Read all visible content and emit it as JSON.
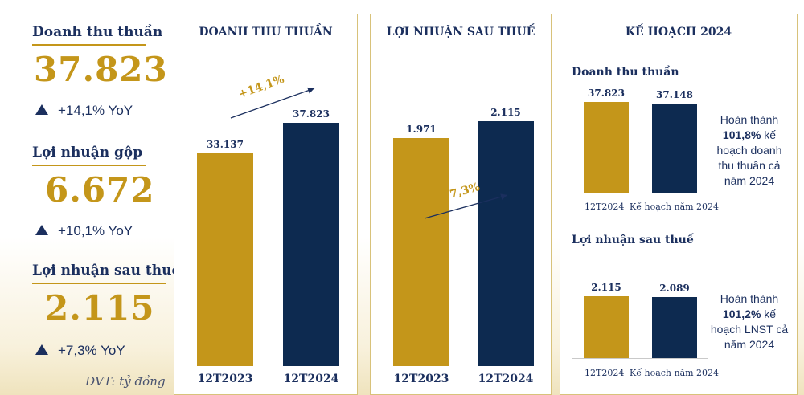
{
  "kpis": [
    {
      "label": "Doanh thu thuần",
      "value": "37.823",
      "yoy": "+14,1% YoY"
    },
    {
      "label": "Lợi nhuận gộp",
      "value": "6.672",
      "yoy": "+10,1% YoY"
    },
    {
      "label": "Lợi nhuận sau thuế",
      "value": "2.115",
      "yoy": "+7,3% YoY"
    }
  ],
  "unit": "ĐVT: tỷ đồng",
  "colors": {
    "gold": "#c4961a",
    "navy": "#0d2a50"
  },
  "chart_data": [
    {
      "type": "bar",
      "title": "DOANH THU THUẦN",
      "categories": [
        "12T2023",
        "12T2024"
      ],
      "values": [
        33137,
        37823
      ],
      "value_labels": [
        "33.137",
        "37.823"
      ],
      "growth_label": "+14,1%",
      "ylim": [
        0,
        45000
      ]
    },
    {
      "type": "bar",
      "title": "LỢI NHUẬN SAU THUẾ",
      "categories": [
        "12T2023",
        "12T2024"
      ],
      "values": [
        1971,
        2115
      ],
      "value_labels": [
        "1.971",
        "2.115"
      ],
      "growth_label": "+7,3%",
      "ylim": [
        0,
        5000
      ]
    },
    {
      "type": "bar",
      "title": "Doanh thu thuần",
      "categories": [
        "12T2024",
        "Kế hoạch năm 2024"
      ],
      "values": [
        37823,
        37148
      ],
      "value_labels": [
        "37.823",
        "37.148"
      ],
      "ylim": [
        0,
        40000
      ]
    },
    {
      "type": "bar",
      "title": "Lợi nhuận sau thuế",
      "categories": [
        "12T2024",
        "Kế hoạch năm 2024"
      ],
      "values": [
        2115,
        2089
      ],
      "value_labels": [
        "2.115",
        "2.089"
      ],
      "ylim": [
        0,
        2250
      ]
    }
  ],
  "plan": {
    "title": "KẾ HOẠCH 2024",
    "revenue_note": {
      "prefix": "Hoàn thành",
      "pct": "101,8%",
      "suffix": "kế hoạch doanh thu thuần cả năm 2024"
    },
    "profit_note": {
      "prefix": "Hoàn thành",
      "pct": "101,2%",
      "suffix": "kế hoạch LNST cả năm 2024"
    }
  }
}
